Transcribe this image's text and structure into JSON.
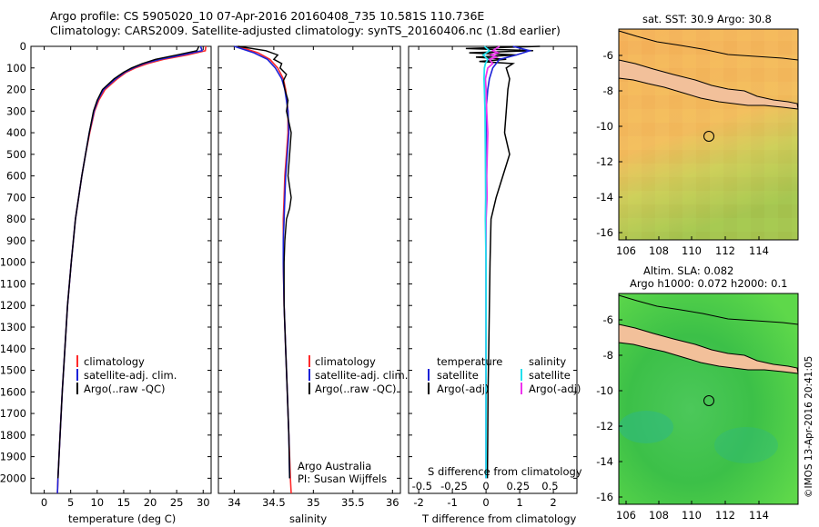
{
  "header": {
    "title_line1": "Argo profile: CS 5905020_10 07-Apr-2016 20160408_735 10.581S 110.736E",
    "title_line2": "Climatology: CARS2009. Satellite-adjusted climatology: synTS_20160406.nc (1.8d earlier)"
  },
  "colors": {
    "climatology": "#ff2a2a",
    "satellite": "#1c22d8",
    "argo": "#000000",
    "salinity_sat": "#22e0ee",
    "salinity_argo": "#ee33ee",
    "land": "#f2c09a"
  },
  "depth_axis": {
    "ticks": [
      0,
      100,
      200,
      300,
      400,
      500,
      600,
      700,
      800,
      900,
      1000,
      1100,
      1200,
      1300,
      1400,
      1500,
      1600,
      1700,
      1800,
      1900,
      2000
    ],
    "range": [
      0,
      2070
    ]
  },
  "temp_chart": {
    "xlabel": "temperature (deg C)",
    "xticks": [
      0,
      5,
      10,
      15,
      20,
      25,
      30
    ],
    "xrange": [
      -2.5,
      31.5
    ],
    "legend": [
      "climatology",
      "satellite-adj. clim.",
      "Argo(..raw -QC)"
    ],
    "series": {
      "climatology": {
        "depth": [
          0,
          20,
          40,
          60,
          80,
          100,
          120,
          150,
          200,
          250,
          300,
          400,
          500,
          600,
          700,
          800,
          900,
          1000,
          1200,
          1400,
          1600,
          1800,
          2000,
          2070
        ],
        "values": [
          30.5,
          30.4,
          27,
          22.5,
          19.5,
          17.2,
          15.5,
          13.8,
          11.5,
          10.3,
          9.5,
          8.6,
          7.8,
          7.1,
          6.5,
          5.9,
          5.5,
          5.1,
          4.4,
          3.9,
          3.4,
          3.0,
          2.6,
          2.5
        ]
      },
      "satellite": {
        "depth": [
          0,
          20,
          40,
          60,
          80,
          100,
          120,
          150,
          200,
          250,
          300,
          400,
          500,
          600,
          700,
          800,
          900,
          1000,
          1200,
          1400,
          1600,
          1800,
          2000,
          2070
        ],
        "values": [
          29.5,
          29.8,
          26,
          21.8,
          18.8,
          16.8,
          15.2,
          13.5,
          11.2,
          10.1,
          9.4,
          8.5,
          7.8,
          7.1,
          6.5,
          5.9,
          5.5,
          5.1,
          4.4,
          3.9,
          3.4,
          3.0,
          2.6,
          2.5
        ]
      },
      "argo": {
        "depth": [
          0,
          20,
          40,
          60,
          80,
          100,
          120,
          150,
          200,
          250,
          300,
          400,
          500,
          600,
          700,
          800,
          900,
          1000,
          1200,
          1400,
          1600,
          1800,
          2000
        ],
        "values": [
          29.2,
          28.8,
          25,
          21,
          18.5,
          16.5,
          15,
          13.2,
          11,
          10,
          9.3,
          8.5,
          7.8,
          7.1,
          6.5,
          5.9,
          5.5,
          5.1,
          4.4,
          3.9,
          3.4,
          3.0,
          2.6
        ]
      }
    }
  },
  "sal_chart": {
    "xlabel": "salinity",
    "xticks": [
      34,
      34.5,
      35,
      35.5,
      36
    ],
    "xrange": [
      33.8,
      36.1
    ],
    "legend": [
      "climatology",
      "satellite-adj. clim.",
      "Argo(..raw -QC)"
    ],
    "credits_line1": "Argo Australia",
    "credits_line2": "PI: Susan Wijffels",
    "series": {
      "climatology": {
        "depth": [
          0,
          30,
          60,
          100,
          150,
          200,
          300,
          400,
          500,
          600,
          700,
          800,
          900,
          1000,
          1200,
          1400,
          1600,
          1800,
          2000,
          2070
        ],
        "values": [
          34.05,
          34.3,
          34.45,
          34.55,
          34.62,
          34.65,
          34.68,
          34.68,
          34.66,
          34.64,
          34.63,
          34.62,
          34.62,
          34.62,
          34.63,
          34.65,
          34.67,
          34.69,
          34.71,
          34.72
        ]
      },
      "satellite": {
        "depth": [
          0,
          30,
          60,
          100,
          150,
          200,
          300,
          400,
          500,
          600,
          700,
          800,
          900,
          1000,
          1200,
          1400,
          1600,
          1800,
          2000
        ],
        "values": [
          34.0,
          34.25,
          34.42,
          34.52,
          34.6,
          34.64,
          34.68,
          34.69,
          34.67,
          34.65,
          34.64,
          34.63,
          34.62,
          34.62,
          34.63,
          34.65,
          34.67,
          34.69,
          34.7
        ]
      },
      "argo": {
        "depth": [
          0,
          20,
          40,
          60,
          80,
          100,
          130,
          160,
          200,
          250,
          300,
          400,
          500,
          600,
          700,
          750,
          800,
          900,
          1000,
          1200,
          1400,
          1600,
          1800,
          2000
        ],
        "values": [
          34.05,
          34.4,
          34.55,
          34.5,
          34.6,
          34.58,
          34.66,
          34.62,
          34.64,
          34.68,
          34.66,
          34.72,
          34.7,
          34.68,
          34.72,
          34.7,
          34.66,
          34.64,
          34.63,
          34.63,
          34.65,
          34.67,
          34.69,
          34.7
        ]
      }
    }
  },
  "diff_chart": {
    "xlabel_temp": "T difference from climatology",
    "xlabel_sal": "S difference from climatology",
    "temp_ticks": [
      -2,
      -1,
      0,
      1,
      2
    ],
    "temp_range": [
      -2.3,
      2.7
    ],
    "sal_ticks": [
      "-0.5",
      "-0.25",
      "0",
      "0.25",
      "0.5"
    ],
    "legend_temp_title": "temperature",
    "legend_sal_title": "salinity",
    "legend_satellite": "satellite",
    "legend_argo": "Argo(-adj)",
    "series": {
      "temp_satellite": {
        "depth": [
          0,
          20,
          40,
          60,
          80,
          100,
          150,
          200,
          300,
          400,
          600,
          800,
          1000,
          1400,
          2000
        ],
        "values": [
          0.8,
          1.3,
          0.9,
          0.4,
          0.3,
          0.2,
          0.1,
          0.05,
          0.0,
          0.0,
          0.0,
          0.0,
          0.0,
          0.0,
          0.0
        ]
      },
      "temp_argo": {
        "depth": [
          0,
          10,
          20,
          30,
          40,
          50,
          60,
          70,
          80,
          100,
          150,
          200,
          300,
          400,
          500,
          600,
          700,
          800,
          1000,
          1200,
          1400,
          1600,
          1800,
          2000
        ],
        "values": [
          1.6,
          -0.6,
          1.4,
          -0.5,
          0.9,
          -0.3,
          0.6,
          -0.2,
          0.8,
          0.6,
          0.7,
          0.65,
          0.6,
          0.55,
          0.7,
          0.5,
          0.3,
          0.15,
          0.12,
          0.1,
          0.08,
          0.06,
          0.05,
          0.04
        ]
      },
      "sal_satellite": {
        "depth": [
          0,
          20,
          40,
          60,
          80,
          100,
          150,
          200,
          300,
          500,
          700,
          800,
          1000,
          1400,
          2000
        ],
        "values": [
          -0.05,
          0.1,
          -0.08,
          0.05,
          -0.02,
          -0.05,
          -0.06,
          -0.05,
          -0.03,
          -0.02,
          -0.01,
          -0.02,
          0.0,
          0.0,
          0.0
        ]
      },
      "sal_argo": {
        "depth": [
          0,
          20,
          30,
          40,
          50,
          60,
          80,
          100,
          150,
          200,
          300,
          400,
          600,
          700,
          800,
          1000,
          1400,
          2000
        ],
        "values": [
          0.4,
          0.2,
          0.35,
          0.15,
          0.3,
          0.1,
          0.2,
          0.05,
          -0.02,
          0.0,
          0.02,
          0.05,
          0.02,
          0.03,
          0.0,
          0.0,
          0.0,
          0.0
        ]
      }
    }
  },
  "map_top": {
    "title": "sat. SST: 30.9  Argo: 30.8",
    "xticks": [
      "106",
      "108",
      "110",
      "112",
      "114"
    ],
    "yticks": [
      "-6",
      "-8",
      "-10",
      "-12",
      "-14",
      "-16"
    ]
  },
  "map_bottom": {
    "title_line1": "Altim. SLA: 0.082",
    "title_line2": "Argo h1000: 0.072 h2000: 0.1",
    "xticks": [
      "106",
      "108",
      "110",
      "112",
      "114"
    ],
    "yticks": [
      "-6",
      "-8",
      "-10",
      "-12",
      "-14",
      "-16"
    ]
  },
  "footer": {
    "imos_stamp": "©IMOS 13-Apr-2016 20:41:05"
  }
}
